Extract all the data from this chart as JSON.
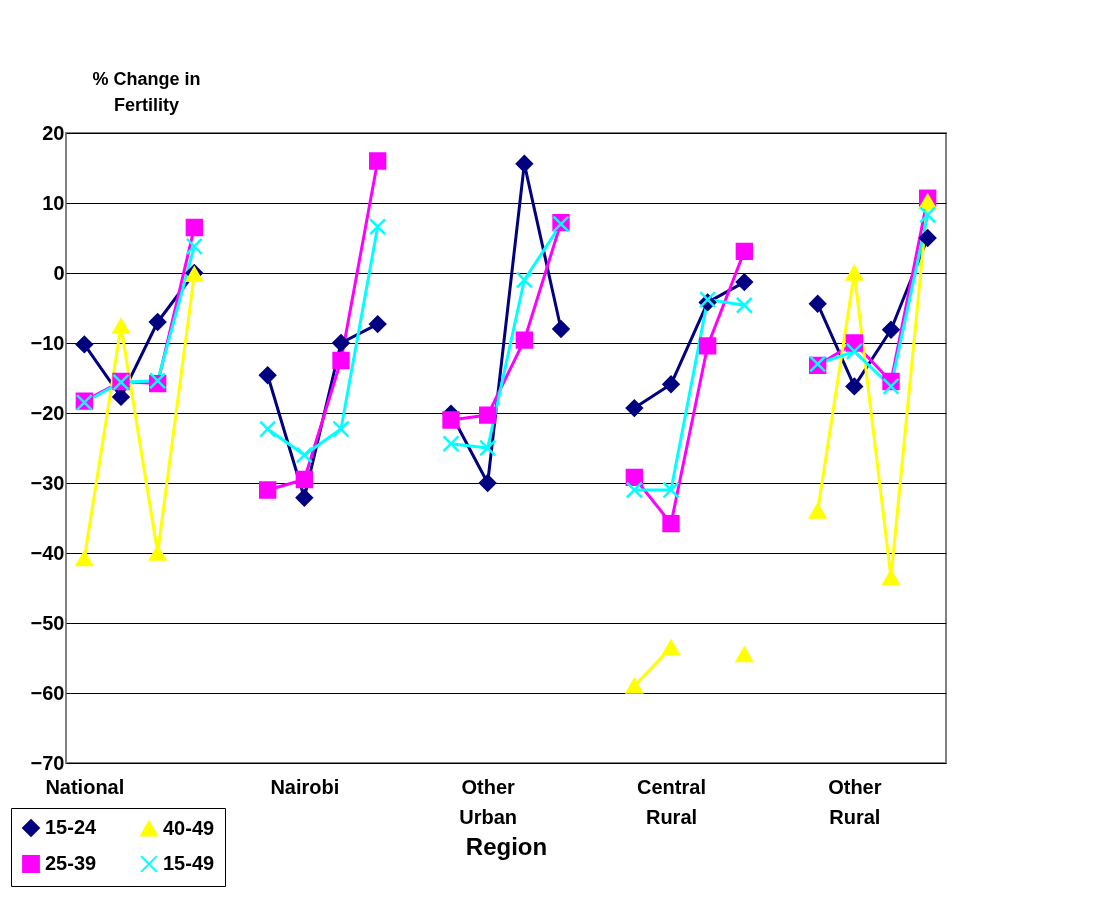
{
  "chart_data": {
    "type": "line",
    "ylabel": "% Change in Fertility",
    "xlabel": "Region",
    "categories": [
      "National",
      null,
      null,
      null,
      null,
      null,
      "Nairobi",
      null,
      null,
      null,
      null,
      "Other Urban",
      null,
      null,
      null,
      null,
      "Central Rural",
      null,
      null,
      null,
      null,
      "Other Rural",
      null,
      null
    ],
    "series": [
      {
        "name": "15-24",
        "color": "#000080",
        "marker": "diamond",
        "values": [
          -10.2,
          -17.7,
          -7.0,
          0,
          null,
          -14.6,
          -32.1,
          -10,
          -7.3,
          null,
          -20.1,
          -30,
          15.6,
          -8,
          null,
          -19.3,
          -15.9,
          -4.2,
          -1.3,
          null,
          -4.4,
          -16.2,
          -8.1,
          5
        ]
      },
      {
        "name": "25-39",
        "color": "#ff00ff",
        "marker": "square",
        "values": [
          -18.3,
          -15.5,
          -15.8,
          6.5,
          null,
          -31,
          -29.5,
          -12.5,
          16,
          null,
          -21,
          -20.3,
          -9.6,
          7.2,
          null,
          -29.2,
          -35.8,
          -10.4,
          3.1,
          null,
          -13.2,
          -10,
          -15.5,
          10.7
        ]
      },
      {
        "name": "40-49",
        "color": "#ffff00",
        "marker": "triangle",
        "values": [
          -40.8,
          -7.6,
          -40,
          -0.2,
          null,
          null,
          null,
          null,
          null,
          null,
          null,
          null,
          null,
          null,
          null,
          -59,
          -53.5,
          null,
          -54.5,
          null,
          -34,
          0,
          -43.5,
          10.2
        ]
      },
      {
        "name": "15-49",
        "color": "#00ffff",
        "marker": "cross",
        "values": [
          -18.5,
          -15.6,
          -15.4,
          3.8,
          null,
          -22.3,
          -26,
          -22.3,
          6.6,
          null,
          -24.4,
          -25,
          -1,
          7,
          null,
          -31,
          -31,
          -3.8,
          -4.6,
          null,
          -13,
          -11.2,
          -16.2,
          8.3
        ]
      }
    ],
    "ylim": [
      -70,
      20
    ],
    "yticks": [
      -70,
      -60,
      -50,
      -40,
      -30,
      -20,
      -10,
      0,
      10,
      20
    ],
    "grid": "y",
    "legend": "bottom left",
    "line_style": "solid"
  }
}
